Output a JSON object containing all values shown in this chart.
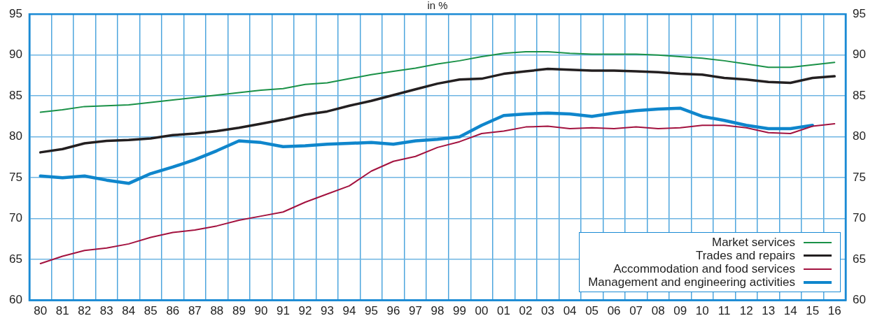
{
  "chart_data": {
    "type": "line",
    "subtitle": "in %",
    "categories": [
      "80",
      "81",
      "82",
      "83",
      "84",
      "85",
      "86",
      "87",
      "88",
      "89",
      "90",
      "91",
      "92",
      "93",
      "94",
      "95",
      "96",
      "97",
      "98",
      "99",
      "00",
      "01",
      "02",
      "03",
      "04",
      "05",
      "06",
      "07",
      "08",
      "09",
      "10",
      "11",
      "12",
      "13",
      "14",
      "15",
      "16"
    ],
    "series": [
      {
        "name": "Market services",
        "color": "#1a9147",
        "values": [
          83.0,
          83.3,
          83.7,
          83.8,
          83.9,
          84.2,
          84.5,
          84.8,
          85.1,
          85.4,
          85.7,
          85.9,
          86.4,
          86.6,
          87.1,
          87.6,
          88.0,
          88.4,
          88.9,
          89.3,
          89.8,
          90.2,
          90.4,
          90.4,
          90.2,
          90.1,
          90.1,
          90.1,
          90.0,
          89.8,
          89.6,
          89.3,
          88.9,
          88.5,
          88.5,
          88.8,
          89.1
        ]
      },
      {
        "name": "Trades and repairs",
        "color": "#231f20",
        "values": [
          78.1,
          78.5,
          79.2,
          79.5,
          79.6,
          79.8,
          80.2,
          80.4,
          80.7,
          81.1,
          81.6,
          82.1,
          82.7,
          83.1,
          83.8,
          84.4,
          85.1,
          85.8,
          86.5,
          87.0,
          87.1,
          87.7,
          88.0,
          88.3,
          88.2,
          88.1,
          88.1,
          88.0,
          87.9,
          87.7,
          87.6,
          87.2,
          87.0,
          86.7,
          86.6,
          87.2,
          87.4
        ]
      },
      {
        "name": "Accommodation and food services",
        "color": "#a3123f",
        "values": [
          64.5,
          65.4,
          66.1,
          66.4,
          66.9,
          67.7,
          68.3,
          68.6,
          69.1,
          69.8,
          70.3,
          70.8,
          72.0,
          73.0,
          74.0,
          75.8,
          77.0,
          77.6,
          78.7,
          79.4,
          80.4,
          80.7,
          81.2,
          81.3,
          81.0,
          81.1,
          81.0,
          81.2,
          81.0,
          81.1,
          81.4,
          81.4,
          81.1,
          80.5,
          80.4,
          81.3,
          81.6
        ]
      },
      {
        "name": "Management and engineering activities",
        "color": "#0f86cc",
        "values": [
          75.2,
          75.0,
          75.2,
          74.7,
          74.3,
          75.5,
          76.3,
          77.2,
          78.3,
          79.5,
          79.3,
          78.8,
          78.9,
          79.1,
          79.2,
          79.3,
          79.1,
          79.5,
          79.7,
          80.0,
          81.4,
          82.6,
          82.8,
          82.9,
          82.8,
          82.5,
          82.9,
          83.2,
          83.4,
          83.5,
          82.5,
          82.0,
          81.4,
          81.0,
          81.0,
          81.4,
          null
        ]
      }
    ],
    "ylim": [
      60,
      95
    ],
    "yticks": [
      60,
      65,
      70,
      75,
      80,
      85,
      90,
      95
    ],
    "y2lim": [
      60,
      95
    ],
    "y2ticks": [
      60,
      65,
      70,
      75,
      80,
      85,
      90,
      95
    ],
    "grid": true,
    "legend": "bottom right",
    "line_style": "solid",
    "marker": "none"
  }
}
